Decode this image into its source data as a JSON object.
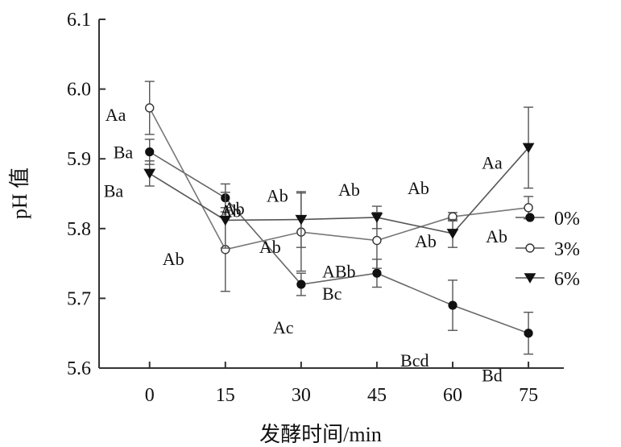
{
  "chart_data": {
    "type": "line",
    "xlabel": "发酵时间/min",
    "ylabel": "pH 值",
    "x": [
      0,
      15,
      30,
      45,
      60,
      75
    ],
    "xlim": [
      -10,
      82
    ],
    "ylim": [
      5.6,
      6.1
    ],
    "y_ticks": [
      "5.6",
      "5.7",
      "5.8",
      "5.9",
      "6.0",
      "6.1"
    ],
    "x_ticks": [
      "0",
      "15",
      "30",
      "45",
      "60",
      "75"
    ],
    "grid": false,
    "legend_position": "right",
    "series": [
      {
        "name": "0%",
        "marker": "filled-circle",
        "values": [
          5.91,
          5.844,
          5.72,
          5.736,
          5.69,
          5.65
        ],
        "errors": [
          0.018,
          0.02,
          0.016,
          0.02,
          0.036,
          0.03
        ],
        "letters": [
          "Ba",
          "Ab",
          "Ac",
          "Bc",
          "Bcd",
          "Bd"
        ]
      },
      {
        "name": "3%",
        "marker": "open-circle",
        "values": [
          5.973,
          5.77,
          5.795,
          5.783,
          5.817,
          5.83
        ],
        "errors": [
          0.038,
          0.06,
          0.056,
          0.04,
          0.006,
          0.016
        ],
        "letters": [
          "Aa",
          "Ab",
          "Ab",
          "ABb",
          "Ab",
          "Ab"
        ]
      },
      {
        "name": "6%",
        "marker": "filled-triangle-down",
        "values": [
          5.879,
          5.812,
          5.813,
          5.816,
          5.793,
          5.916
        ],
        "errors": [
          0.018,
          0.04,
          0.04,
          0.016,
          0.02,
          0.058
        ],
        "letters": [
          "Ba",
          "Ab",
          "Ab",
          "Ab",
          "Ab",
          "Aa"
        ]
      }
    ]
  }
}
